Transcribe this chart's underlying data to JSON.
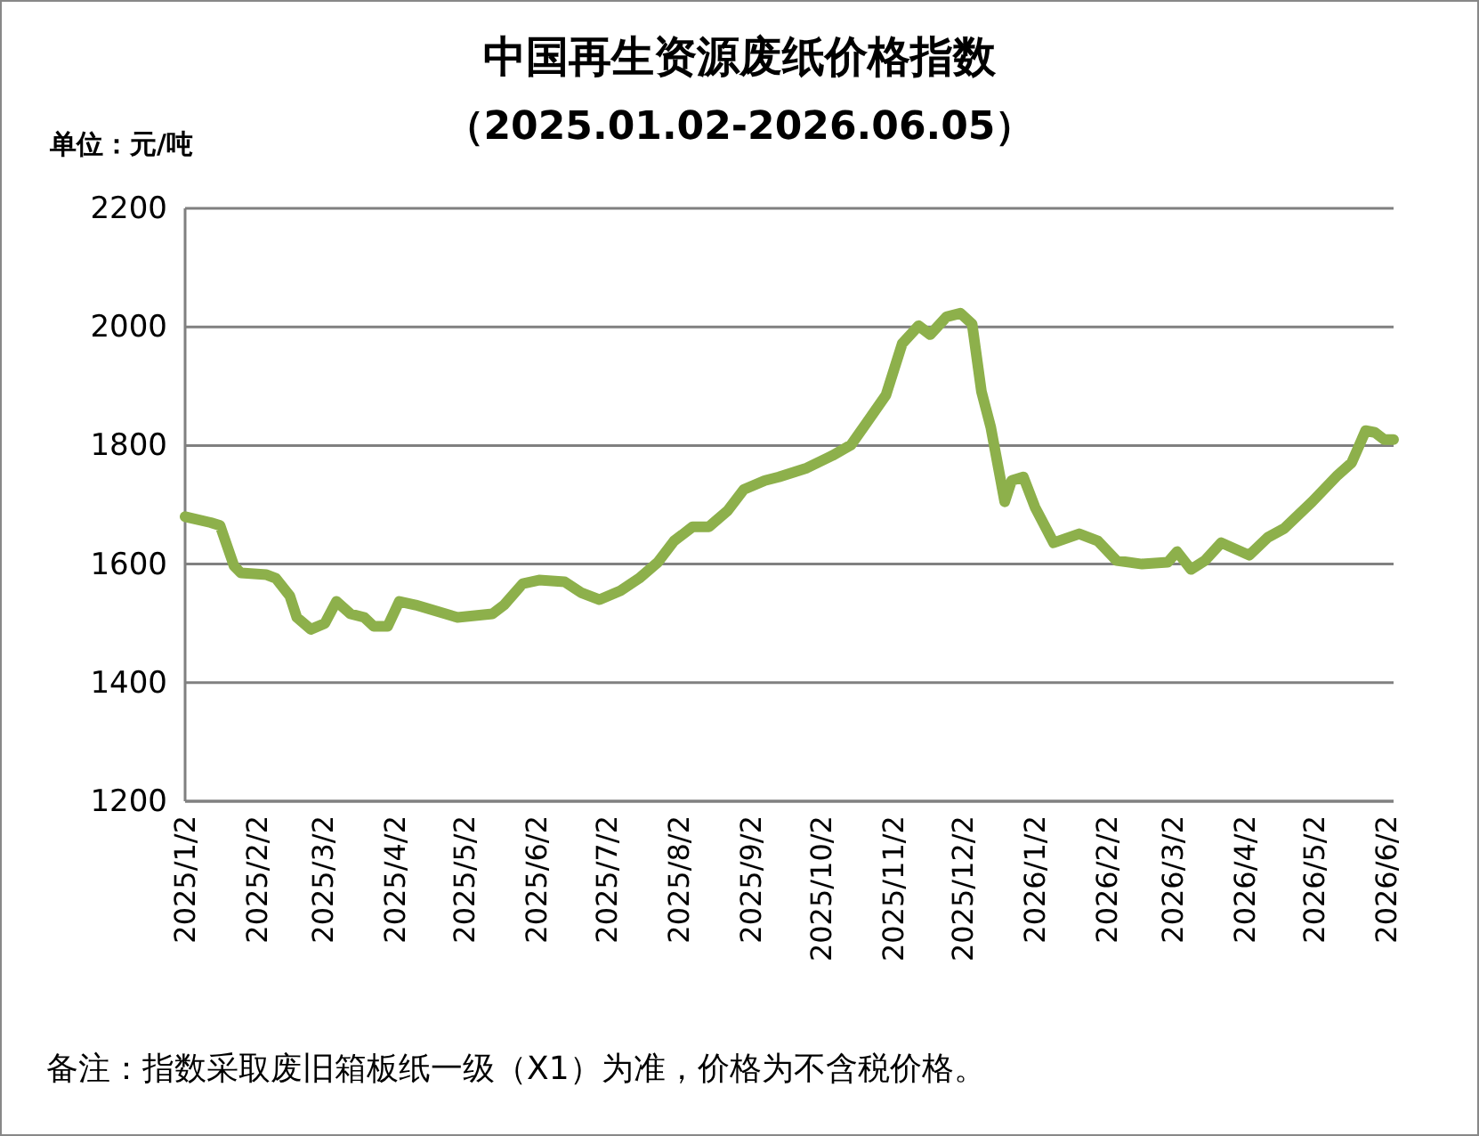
{
  "chart_data": {
    "type": "line",
    "title": "中国再生资源废纸价格指数",
    "subtitle": "（2025.01.02-2026.06.05）",
    "ylabel": "单位：元/吨",
    "annotations": [
      "备注：指数采取废旧箱板纸一级（X1）为准，价格为不含税价格。"
    ],
    "x": [
      "2025-01-02",
      "2025-01-13",
      "2025-01-17",
      "2025-01-23",
      "2025-01-26",
      "2025-02-06",
      "2025-02-10",
      "2025-02-16",
      "2025-02-19",
      "2025-02-25",
      "2025-03-03",
      "2025-03-08",
      "2025-03-14",
      "2025-03-20",
      "2025-03-24",
      "2025-03-30",
      "2025-04-04",
      "2025-04-11",
      "2025-04-29",
      "2025-05-14",
      "2025-05-19",
      "2025-05-27",
      "2025-06-03",
      "2025-06-14",
      "2025-06-21",
      "2025-06-29",
      "2025-07-08",
      "2025-07-16",
      "2025-07-24",
      "2025-07-31",
      "2025-08-08",
      "2025-08-15",
      "2025-08-23",
      "2025-08-30",
      "2025-09-08",
      "2025-09-14",
      "2025-09-26",
      "2025-10-07",
      "2025-10-15",
      "2025-10-22",
      "2025-10-30",
      "2025-11-06",
      "2025-11-13",
      "2025-11-18",
      "2025-11-25",
      "2025-12-01",
      "2025-12-06",
      "2025-12-10",
      "2025-12-14",
      "2025-12-18",
      "2025-12-20",
      "2025-12-23",
      "2025-12-28",
      "2026-01-02",
      "2026-01-10",
      "2026-01-21",
      "2026-01-29",
      "2026-02-06",
      "2026-02-17",
      "2026-02-28",
      "2026-03-04",
      "2026-03-10",
      "2026-03-16",
      "2026-03-23",
      "2026-04-04",
      "2026-04-12",
      "2026-04-19",
      "2026-05-01",
      "2026-05-12",
      "2026-05-18",
      "2026-05-24",
      "2026-05-28",
      "2026-06-01",
      "2026-06-05"
    ],
    "series": [
      {
        "color": "#8db04b",
        "values": [
          1680,
          1670,
          1665,
          1597,
          1585,
          1582,
          1576,
          1546,
          1510,
          1490,
          1500,
          1537,
          1516,
          1510,
          1495,
          1495,
          1537,
          1531,
          1510,
          1516,
          1531,
          1567,
          1573,
          1570,
          1552,
          1540,
          1555,
          1576,
          1603,
          1639,
          1663,
          1663,
          1690,
          1726,
          1741,
          1747,
          1762,
          1783,
          1801,
          1840,
          1885,
          1972,
          2002,
          1987,
          2017,
          2023,
          2005,
          1891,
          1831,
          1747,
          1705,
          1741,
          1747,
          1696,
          1636,
          1651,
          1639,
          1606,
          1600,
          1603,
          1621,
          1591,
          1606,
          1636,
          1615,
          1645,
          1660,
          1705,
          1750,
          1771,
          1825,
          1822,
          1810,
          1810
        ]
      }
    ],
    "xlim": [
      "2025-01-02",
      "2026-06-05"
    ],
    "xticks": [
      {
        "value": "2025-01-02",
        "label": "2025/1/2"
      },
      {
        "value": "2025-02-02",
        "label": "2025/2/2"
      },
      {
        "value": "2025-03-02",
        "label": "2025/3/2"
      },
      {
        "value": "2025-04-02",
        "label": "2025/4/2"
      },
      {
        "value": "2025-05-02",
        "label": "2025/5/2"
      },
      {
        "value": "2025-06-02",
        "label": "2025/6/2"
      },
      {
        "value": "2025-07-02",
        "label": "2025/7/2"
      },
      {
        "value": "2025-08-02",
        "label": "2025/8/2"
      },
      {
        "value": "2025-09-02",
        "label": "2025/9/2"
      },
      {
        "value": "2025-10-02",
        "label": "2025/10/2"
      },
      {
        "value": "2025-11-02",
        "label": "2025/11/2"
      },
      {
        "value": "2025-12-02",
        "label": "2025/12/2"
      },
      {
        "value": "2026-01-02",
        "label": "2026/1/2"
      },
      {
        "value": "2026-02-02",
        "label": "2026/2/2"
      },
      {
        "value": "2026-03-02",
        "label": "2026/3/2"
      },
      {
        "value": "2026-04-02",
        "label": "2026/4/2"
      },
      {
        "value": "2026-05-02",
        "label": "2026/5/2"
      },
      {
        "value": "2026-06-02",
        "label": "2026/6/2"
      }
    ],
    "ylim": [
      1200,
      2200
    ],
    "yticks": [
      1200,
      1400,
      1600,
      1800,
      2000,
      2200
    ],
    "grid": "y",
    "marker": "none",
    "line_style": "solid"
  }
}
